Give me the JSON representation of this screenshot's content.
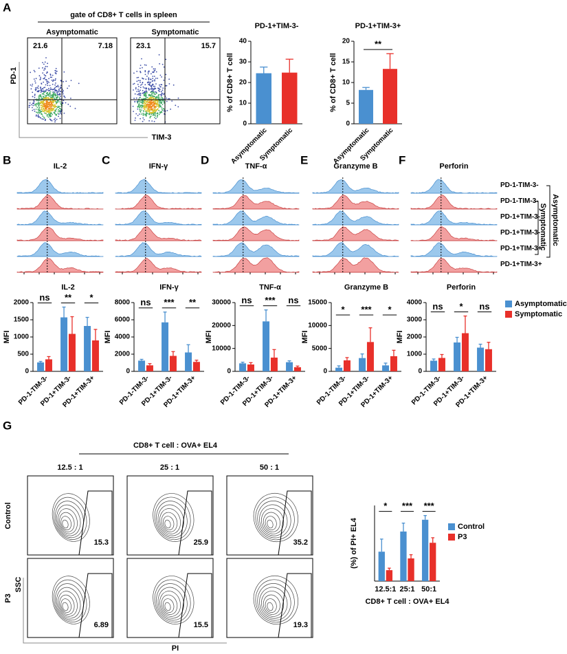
{
  "figure": {
    "panel_letters": [
      "A",
      "B",
      "C",
      "D",
      "E",
      "F",
      "G"
    ],
    "flow_a": {
      "gate_title": "gate of CD8+ T cells in spleen",
      "x_label": "TIM-3",
      "y_label": "PD-1",
      "plots": [
        {
          "title": "Asymptomatic",
          "quadrants": [
            21.6,
            7.18
          ]
        },
        {
          "title": "Symptomatic",
          "quadrants": [
            23.1,
            15.7
          ]
        }
      ]
    },
    "histograms": {
      "titles": [
        "IL-2",
        "IFN-γ",
        "TNF-α",
        "Granzyme B",
        "Perforin"
      ],
      "rows": [
        {
          "label": "PD-1-TIM-3-",
          "color": "#1f77c4"
        },
        {
          "label": "PD-1-TIM-3-",
          "color": "#e0302a"
        },
        {
          "label": "PD-1+TIM-3-",
          "color": "#1f77c4"
        },
        {
          "label": "PD-1+TIM-3-",
          "color": "#e0302a"
        },
        {
          "label": "PD-1+TIM-3+",
          "color": "#1f77c4"
        },
        {
          "label": "PD-1+TIM-3+",
          "color": "#e0302a"
        }
      ],
      "groups": [
        "Asymptomatic",
        "Symptomatic"
      ]
    },
    "flow_g": {
      "title": "CD8+ T cell : OVA+ EL4",
      "ratios": [
        "12.5 : 1",
        "25 : 1",
        "50 : 1"
      ],
      "rows": [
        {
          "label": "Control",
          "values": [
            15.3,
            25.9,
            35.2
          ]
        },
        {
          "label": "P3",
          "values": [
            6.89,
            15.5,
            19.3
          ]
        }
      ],
      "x_label": "PI",
      "y_label": "SSC"
    }
  },
  "chart_data": [
    {
      "type": "bar",
      "title": "PD-1+TIM-3-",
      "y_label": "% of CD8+ T cell",
      "categories": [
        "Asymptomatic",
        "Symptomatic"
      ],
      "values": [
        24.5,
        24.8
      ],
      "errors": [
        3,
        6.5
      ],
      "colors": [
        "#4a90d0",
        "#e8302a"
      ],
      "ylim": [
        0,
        40
      ],
      "yticks": [
        0,
        10,
        20,
        30,
        40
      ]
    },
    {
      "type": "bar",
      "title": "PD-1+TIM-3+",
      "y_label": "% of CD8+ T cell",
      "categories": [
        "Asymptomatic",
        "Symptomatic"
      ],
      "values": [
        8.2,
        13.3
      ],
      "errors": [
        0.6,
        3.7
      ],
      "colors": [
        "#4a90d0",
        "#e8302a"
      ],
      "ylim": [
        0,
        20
      ],
      "yticks": [
        0,
        5,
        10,
        15,
        20
      ],
      "annotations": [
        "**"
      ]
    },
    {
      "type": "bar",
      "title": "IL-2",
      "y_label": "MFI",
      "categories": [
        "PD-1-TIM-3-",
        "PD-1+TIM-3-",
        "PD-1+TIM-3+"
      ],
      "series": [
        {
          "name": "Asymptomatic",
          "color": "#4a90d0",
          "values": [
            260,
            1570,
            1320
          ],
          "errors": [
            30,
            300,
            250
          ]
        },
        {
          "name": "Symptomatic",
          "color": "#e8302a",
          "values": [
            350,
            1090,
            900
          ],
          "errors": [
            80,
            500,
            320
          ]
        }
      ],
      "ylim": [
        0,
        2000
      ],
      "yticks": [
        0,
        500,
        1000,
        1500,
        2000
      ],
      "annotations": [
        "ns",
        "**",
        "*"
      ],
      "legend": true
    },
    {
      "type": "bar",
      "title": "IFN-γ",
      "y_label": "MFI",
      "categories": [
        "PD-1-TIM-3-",
        "PD-1+TIM-3-",
        "PD-1+TIM-3+"
      ],
      "series": [
        {
          "name": "Asymptomatic",
          "color": "#4a90d0",
          "values": [
            1250,
            5700,
            2200
          ],
          "errors": [
            150,
            1200,
            900
          ]
        },
        {
          "name": "Symptomatic",
          "color": "#e8302a",
          "values": [
            700,
            1800,
            1100
          ],
          "errors": [
            200,
            500,
            200
          ]
        }
      ],
      "ylim": [
        0,
        8000
      ],
      "yticks": [
        0,
        2000,
        4000,
        6000,
        8000
      ],
      "annotations": [
        "ns",
        "***",
        "**"
      ]
    },
    {
      "type": "bar",
      "title": "TNF-α",
      "y_label": "MFI",
      "categories": [
        "PD-1-TIM-3-",
        "PD-1+TIM-3-",
        "PD-1+TIM-3+"
      ],
      "series": [
        {
          "name": "Asymptomatic",
          "color": "#4a90d0",
          "values": [
            3500,
            21800,
            4000
          ],
          "errors": [
            500,
            5000,
            600
          ]
        },
        {
          "name": "Symptomatic",
          "color": "#e8302a",
          "values": [
            3000,
            6000,
            1800
          ],
          "errors": [
            800,
            3500,
            500
          ]
        }
      ],
      "ylim": [
        0,
        30000
      ],
      "yticks": [
        0,
        10000,
        20000,
        30000
      ],
      "annotations": [
        "ns",
        "***",
        "ns"
      ]
    },
    {
      "type": "bar",
      "title": "Granzyme B",
      "y_label": "MFI",
      "categories": [
        "PD-1-TIM-3-",
        "PD-1+TIM-3-",
        "PD-1+TIM-3+"
      ],
      "series": [
        {
          "name": "Asymptomatic",
          "color": "#4a90d0",
          "values": [
            800,
            2900,
            1300
          ],
          "errors": [
            400,
            900,
            500
          ]
        },
        {
          "name": "Symptomatic",
          "color": "#e8302a",
          "values": [
            2400,
            6400,
            3300
          ],
          "errors": [
            600,
            3100,
            1300
          ]
        }
      ],
      "ylim": [
        0,
        15000
      ],
      "yticks": [
        0,
        5000,
        10000,
        15000
      ],
      "annotations": [
        "*",
        "***",
        "*"
      ]
    },
    {
      "type": "bar",
      "title": "Perforin",
      "y_label": "MFI",
      "categories": [
        "PD-1-TIM-3-",
        "PD-1+TIM-3-",
        "PD-1+TIM-3+"
      ],
      "series": [
        {
          "name": "Asymptomatic",
          "color": "#4a90d0",
          "values": [
            620,
            1680,
            1380
          ],
          "errors": [
            100,
            300,
            200
          ]
        },
        {
          "name": "Symptomatic",
          "color": "#e8302a",
          "values": [
            780,
            2220,
            1290
          ],
          "errors": [
            200,
            1000,
            400
          ]
        }
      ],
      "ylim": [
        0,
        4000
      ],
      "yticks": [
        0,
        1000,
        2000,
        3000,
        4000
      ],
      "annotations": [
        "ns",
        "*",
        "ns"
      ]
    },
    {
      "type": "bar",
      "y_label": "(%) of PI+ EL4",
      "x_label": "CD8+ T cell : OVA+ EL4",
      "categories": [
        "12.5:1",
        "25:1",
        "50:1"
      ],
      "series": [
        {
          "name": "Control",
          "color": "#4a90d0",
          "values": [
            17.5,
            29.5,
            36.5
          ],
          "errors": [
            7.5,
            5,
            2.5
          ]
        },
        {
          "name": "P3",
          "color": "#e8302a",
          "values": [
            6.5,
            13.5,
            22.8
          ],
          "errors": [
            1.2,
            2.2,
            3
          ]
        }
      ],
      "ylim": [
        0,
        45
      ],
      "annotations": [
        "*",
        "***",
        "***"
      ],
      "legend": true
    }
  ]
}
